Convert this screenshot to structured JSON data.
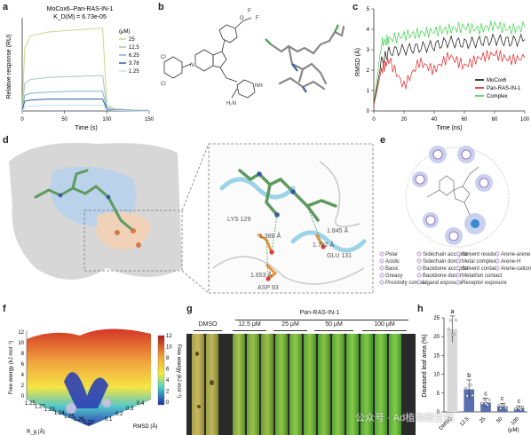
{
  "panels": {
    "a": "a",
    "b": "b",
    "c": "c",
    "d": "d",
    "e": "e",
    "f": "f",
    "g": "g",
    "h": "h"
  },
  "panel_a": {
    "title": "MoCox6–Pan-RAS-IN-1",
    "kd": "K_D(M) = 6.73e-05",
    "ylabel": "Relative response (RU)",
    "xlabel": "Time (s)",
    "legend_title": "(μM)",
    "concentrations": [
      "25",
      "12.5",
      "6.25",
      "3.78",
      "1.25"
    ],
    "colors": [
      "#c9d68a",
      "#a8c3c2",
      "#7fb3d5",
      "#2b5f9e",
      "#c6ddf0"
    ]
  },
  "panel_c": {
    "ylabel": "RMSD (Å)",
    "xlabel": "Time (ns)",
    "legend": [
      "MoCox6",
      "Pan-RAS-IN-1",
      "Complex"
    ],
    "colors": [
      "#111111",
      "#e32020",
      "#3fd14b"
    ]
  },
  "panel_d": {
    "residues": [
      "LYS 129",
      "GLU 131",
      "ASP 93"
    ],
    "distances": [
      "1.845 Å",
      "1.722 Å",
      "1.653 Å",
      "1.388 Å"
    ]
  },
  "panel_e": {
    "legend_col1": [
      "Polar",
      "Acidic",
      "Basic",
      "Greasy",
      "Proximity contour"
    ],
    "legend_col2": [
      "Sidechain acceptor",
      "Sidechain donor",
      "Backbone acceptor",
      "Backbone donor",
      "Ligand exposure"
    ],
    "legend_col3": [
      "Solvent residue",
      "Metal complex",
      "Solvent contact",
      "Metal/ion contact",
      "Receptor exposure"
    ],
    "legend_col4": [
      "Arene-arene",
      "Arene-H",
      "Arene-cation"
    ]
  },
  "panel_f": {
    "colorbar_label": "Free energy (kJ mol⁻¹)",
    "zlabel": "Free energy (kJ mol⁻¹)",
    "xlabel": "R_g (Å)",
    "ylabel": "RMSD (Å)",
    "colorbar_ticks": [
      "12",
      "10",
      "8",
      "6",
      "4",
      "2",
      "0"
    ],
    "z_ticks": [
      "12",
      "10",
      "8",
      "6",
      "4",
      "2",
      "0"
    ],
    "x_ticks": [
      "1.25",
      "1.27",
      "1.23",
      "1.24",
      "1.25",
      "1.26",
      "1.27"
    ],
    "y_ticks": [
      "0.1",
      "0.2",
      "0.3",
      "0.4"
    ]
  },
  "panel_g": {
    "group_label": "Pan-RAS-IN-1",
    "groups": [
      "DMSO",
      "12.5 μM",
      "25 μM",
      "50 μM",
      "100 μM"
    ]
  },
  "panel_h": {
    "ylabel": "Diseased leaf area (%)",
    "categories": [
      "DMSO",
      "12.5",
      "25",
      "50",
      "100"
    ],
    "unit": "(μM)",
    "y_ticks": [
      "0",
      "5",
      "10",
      "15",
      "20",
      "25"
    ],
    "letters": [
      "a",
      "b",
      "c",
      "c",
      "c"
    ]
  },
  "watermark": "公众号 · Ad植物微生物",
  "chart_data": [
    {
      "type": "line",
      "title": "MoCox6–Pan-RAS-IN-1",
      "xlabel": "Time (s)",
      "ylabel": "Relative response (RU)",
      "xlim": [
        0,
        150
      ],
      "x_ticks": [
        0,
        50,
        100,
        150
      ],
      "series": [
        {
          "name": "25",
          "x": [
            0,
            3,
            10,
            30,
            60,
            95,
            100,
            110,
            130,
            150
          ],
          "values": [
            0,
            32,
            38,
            40,
            41,
            42,
            3,
            1,
            0.5,
            0.2
          ]
        },
        {
          "name": "12.5",
          "x": [
            0,
            3,
            10,
            30,
            60,
            95,
            100,
            110,
            130,
            150
          ],
          "values": [
            0,
            14,
            16,
            17,
            17.5,
            18,
            2,
            1,
            0.5,
            0.2
          ]
        },
        {
          "name": "6.25",
          "x": [
            0,
            3,
            10,
            30,
            60,
            95,
            100,
            110,
            130,
            150
          ],
          "values": [
            0,
            8,
            9,
            9.5,
            10,
            10,
            1,
            0.5,
            0.3,
            0.1
          ]
        },
        {
          "name": "3.78",
          "x": [
            0,
            3,
            10,
            30,
            60,
            95,
            100,
            110,
            130,
            150
          ],
          "values": [
            0,
            5,
            5.5,
            6,
            6,
            6,
            0.8,
            0.4,
            0.2,
            0.1
          ]
        },
        {
          "name": "1.25",
          "x": [
            0,
            3,
            10,
            30,
            60,
            95,
            100,
            110,
            130,
            150
          ],
          "values": [
            0,
            2,
            2.5,
            2.8,
            3,
            3,
            0.5,
            0.3,
            0.1,
            0
          ]
        }
      ]
    },
    {
      "type": "line",
      "xlabel": "Time (ns)",
      "ylabel": "RMSD (Å)",
      "xlim": [
        0,
        100
      ],
      "ylim": [
        0,
        5
      ],
      "x_ticks": [
        0,
        20,
        40,
        60,
        80,
        100
      ],
      "y_ticks": [
        0,
        1,
        2,
        3,
        4,
        5
      ],
      "series": [
        {
          "name": "MoCox6",
          "x": [
            0,
            5,
            10,
            20,
            30,
            40,
            50,
            60,
            70,
            80,
            90,
            100
          ],
          "values": [
            0.3,
            2.4,
            2.9,
            3.0,
            3.1,
            3.2,
            3.4,
            3.3,
            3.4,
            3.5,
            3.4,
            3.5
          ]
        },
        {
          "name": "Pan-RAS-IN-1",
          "x": [
            0,
            5,
            10,
            20,
            30,
            40,
            50,
            60,
            70,
            80,
            90,
            100
          ],
          "values": [
            0.3,
            2.0,
            2.5,
            1.2,
            2.4,
            2.0,
            2.7,
            2.2,
            2.6,
            2.8,
            2.5,
            2.6
          ]
        },
        {
          "name": "Complex",
          "x": [
            0,
            5,
            10,
            20,
            30,
            40,
            50,
            60,
            70,
            80,
            90,
            100
          ],
          "values": [
            0.3,
            3.3,
            3.5,
            3.7,
            3.8,
            3.9,
            4.0,
            4.1,
            4.0,
            4.2,
            4.0,
            4.1
          ]
        }
      ]
    },
    {
      "type": "bar",
      "ylabel": "Diseased leaf area (%)",
      "categories": [
        "DMSO",
        "12.5",
        "25",
        "50",
        "100"
      ],
      "values": [
        22,
        6,
        2.5,
        1.5,
        1
      ],
      "errors": [
        3.5,
        2.5,
        1.2,
        0.8,
        0.6
      ],
      "ylim": [
        0,
        25
      ],
      "y_ticks": [
        0,
        5,
        10,
        15,
        20,
        25
      ]
    }
  ]
}
